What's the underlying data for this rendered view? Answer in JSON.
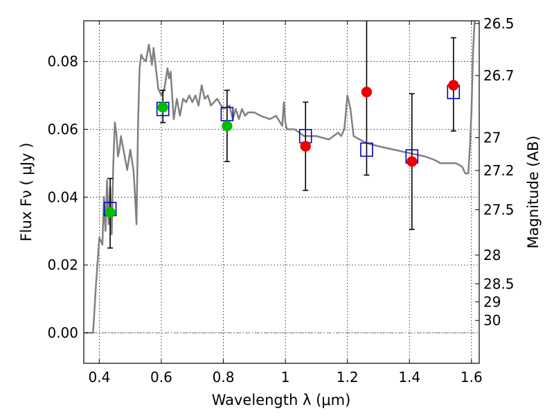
{
  "chart_data": {
    "type": "scatter",
    "xlabel": "Wavelength  λ (μm)",
    "ylabel": "Flux  Fν  ( μJy )",
    "y2label": "Magnitude (AB)",
    "xlim": [
      0.35,
      1.625
    ],
    "ylim": [
      -0.009,
      0.092
    ],
    "grid": true,
    "x_ticks": [
      {
        "v": 0.4,
        "label": "0.4"
      },
      {
        "v": 0.6,
        "label": "0.6"
      },
      {
        "v": 0.8,
        "label": "0.8"
      },
      {
        "v": 1.0,
        "label": "1"
      },
      {
        "v": 1.2,
        "label": "1.2"
      },
      {
        "v": 1.4,
        "label": "1.4"
      },
      {
        "v": 1.6,
        "label": "1.6"
      }
    ],
    "y_ticks": [
      {
        "v": 0.0,
        "label": "0.00"
      },
      {
        "v": 0.02,
        "label": "0.02"
      },
      {
        "v": 0.04,
        "label": "0.04"
      },
      {
        "v": 0.06,
        "label": "0.06"
      },
      {
        "v": 0.08,
        "label": "0.08"
      }
    ],
    "y2_ticks": [
      {
        "mag": 26.5,
        "label": "26.5"
      },
      {
        "mag": 26.7,
        "label": "26.7"
      },
      {
        "mag": 27.0,
        "label": "27"
      },
      {
        "mag": 27.2,
        "label": "27.2"
      },
      {
        "mag": 27.5,
        "label": "27.5"
      },
      {
        "mag": 28.0,
        "label": "28"
      },
      {
        "mag": 28.5,
        "label": "28.5"
      },
      {
        "mag": 29.0,
        "label": "29"
      },
      {
        "mag": 30.0,
        "label": "30"
      }
    ],
    "zero_line": 0.0,
    "template_spectrum": {
      "color": "#808080",
      "x": [
        0.355,
        0.37,
        0.38,
        0.39,
        0.4,
        0.41,
        0.415,
        0.42,
        0.425,
        0.43,
        0.435,
        0.44,
        0.445,
        0.45,
        0.455,
        0.46,
        0.465,
        0.47,
        0.48,
        0.49,
        0.5,
        0.51,
        0.515,
        0.52,
        0.525,
        0.53,
        0.535,
        0.54,
        0.55,
        0.56,
        0.565,
        0.57,
        0.575,
        0.58,
        0.59,
        0.6,
        0.61,
        0.62,
        0.625,
        0.63,
        0.635,
        0.64,
        0.65,
        0.66,
        0.67,
        0.68,
        0.69,
        0.7,
        0.71,
        0.72,
        0.73,
        0.74,
        0.75,
        0.76,
        0.78,
        0.8,
        0.82,
        0.83,
        0.84,
        0.85,
        0.86,
        0.87,
        0.88,
        0.9,
        0.92,
        0.95,
        0.97,
        0.99,
        0.995,
        1.0,
        1.005,
        1.01,
        1.03,
        1.06,
        1.1,
        1.14,
        1.17,
        1.18,
        1.19,
        1.2,
        1.21,
        1.22,
        1.26,
        1.3,
        1.35,
        1.4,
        1.45,
        1.48,
        1.5,
        1.55,
        1.57,
        1.58,
        1.59,
        1.595,
        1.6,
        1.605,
        1.61
      ],
      "y": [
        0.0,
        0.0,
        0.0,
        0.015,
        0.028,
        0.026,
        0.04,
        0.03,
        0.045,
        0.032,
        0.043,
        0.029,
        0.049,
        0.062,
        0.059,
        0.052,
        0.054,
        0.058,
        0.053,
        0.048,
        0.054,
        0.048,
        0.041,
        0.032,
        0.062,
        0.078,
        0.082,
        0.081,
        0.08,
        0.085,
        0.082,
        0.079,
        0.084,
        0.08,
        0.072,
        0.07,
        0.072,
        0.078,
        0.075,
        0.077,
        0.07,
        0.063,
        0.069,
        0.064,
        0.069,
        0.068,
        0.07,
        0.068,
        0.07,
        0.067,
        0.073,
        0.069,
        0.07,
        0.067,
        0.069,
        0.066,
        0.067,
        0.063,
        0.066,
        0.063,
        0.066,
        0.064,
        0.065,
        0.065,
        0.064,
        0.063,
        0.064,
        0.061,
        0.068,
        0.062,
        0.06,
        0.06,
        0.06,
        0.058,
        0.058,
        0.057,
        0.059,
        0.058,
        0.06,
        0.07,
        0.066,
        0.058,
        0.056,
        0.055,
        0.054,
        0.053,
        0.052,
        0.051,
        0.05,
        0.05,
        0.049,
        0.047,
        0.047,
        0.055,
        0.065,
        0.082,
        0.092
      ]
    },
    "series": [
      {
        "marker": "square",
        "color": "#0000cc",
        "points": [
          {
            "x": 0.435,
            "y": 0.0365
          },
          {
            "x": 0.605,
            "y": 0.066
          },
          {
            "x": 0.812,
            "y": 0.0645
          },
          {
            "x": 1.065,
            "y": 0.058
          },
          {
            "x": 1.262,
            "y": 0.054
          },
          {
            "x": 1.408,
            "y": 0.052
          },
          {
            "x": 1.542,
            "y": 0.071
          }
        ]
      },
      {
        "marker": "circle",
        "color": "#00bb00",
        "points": [
          {
            "x": 0.435,
            "y": 0.0355
          },
          {
            "x": 0.605,
            "y": 0.0665
          },
          {
            "x": 0.812,
            "y": 0.061
          }
        ]
      },
      {
        "marker": "circle",
        "color": "#ee0000",
        "points": [
          {
            "x": 1.065,
            "y": 0.055
          },
          {
            "x": 1.262,
            "y": 0.071
          },
          {
            "x": 1.408,
            "y": 0.0505
          },
          {
            "x": 1.542,
            "y": 0.073
          }
        ]
      }
    ],
    "error_bars": [
      {
        "x": 0.435,
        "low": 0.025,
        "high": 0.0455
      },
      {
        "x": 0.605,
        "low": 0.062,
        "high": 0.0715
      },
      {
        "x": 0.812,
        "low": 0.0505,
        "high": 0.0715
      },
      {
        "x": 1.065,
        "low": 0.042,
        "high": 0.068
      },
      {
        "x": 1.262,
        "low": 0.0465,
        "high": 0.092
      },
      {
        "x": 1.408,
        "low": 0.0305,
        "high": 0.0705
      },
      {
        "x": 1.542,
        "low": 0.0595,
        "high": 0.087
      }
    ]
  }
}
